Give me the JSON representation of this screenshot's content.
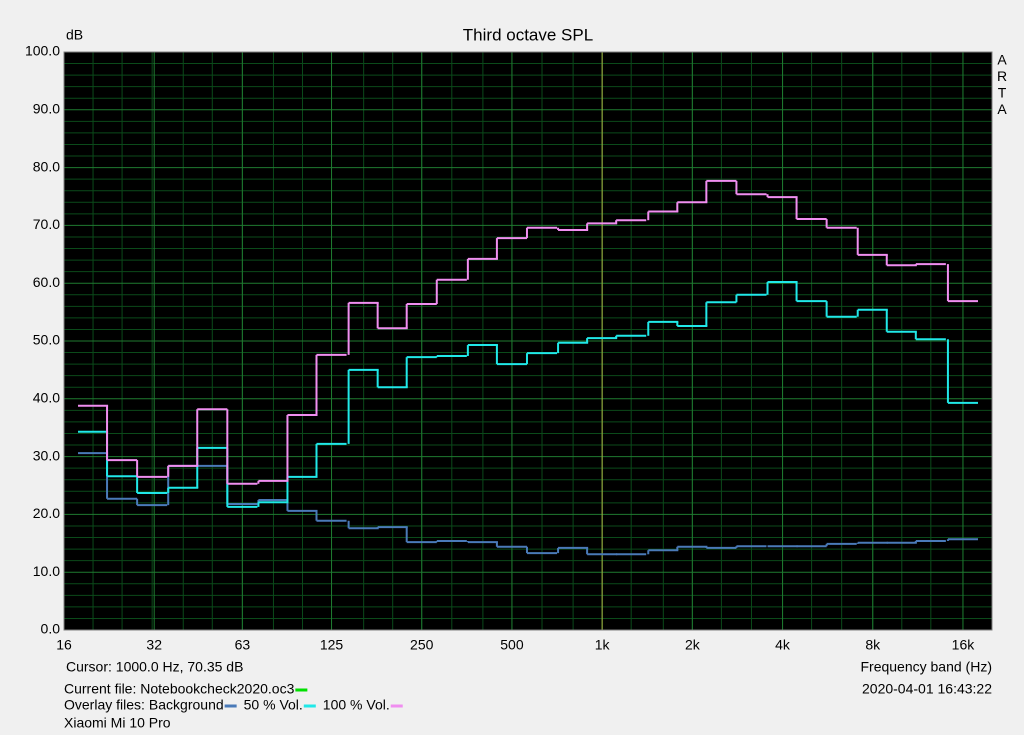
{
  "chart_data": {
    "type": "step",
    "title": "Third octave SPL",
    "y_label": "dB",
    "x_label": "Frequency band (Hz)",
    "watermark": [
      "A",
      "R",
      "T",
      "A"
    ],
    "cursor_text": "Cursor:  1000.0 Hz, 70.35 dB",
    "cursor_x": 1000,
    "current_file": "Current file: Notebookcheck2020.oc3",
    "current_file_color": "#00e000",
    "overlay_label": "Overlay files:",
    "device": "Xiaomi Mi 10 Pro",
    "timestamp": "2020-04-01  16:43:22",
    "log_x": true,
    "grid": true,
    "xlim": [
      16,
      20000
    ],
    "ylim": [
      0,
      100
    ],
    "xticks": [
      16,
      32,
      63,
      125,
      250,
      500,
      {
        "value": 1000,
        "label": "1k"
      },
      {
        "value": 2000,
        "label": "2k"
      },
      {
        "value": 4000,
        "label": "4k"
      },
      {
        "value": 8000,
        "label": "8k"
      },
      {
        "value": 16000,
        "label": "16k"
      }
    ],
    "yticks": [
      {
        "value": 0,
        "label": "0.0"
      },
      {
        "value": 10,
        "label": "10.0"
      },
      {
        "value": 20,
        "label": "20.0"
      },
      {
        "value": 30,
        "label": "30.0"
      },
      {
        "value": 40,
        "label": "40.0"
      },
      {
        "value": 50,
        "label": "50.0"
      },
      {
        "value": 60,
        "label": "60.0"
      },
      {
        "value": 70,
        "label": "70.0"
      },
      {
        "value": 80,
        "label": "80.0"
      },
      {
        "value": 90,
        "label": "90.0"
      },
      {
        "value": 100,
        "label": "100.0"
      }
    ],
    "x": [
      20,
      25,
      31.5,
      40,
      50,
      63,
      80,
      100,
      125,
      160,
      200,
      250,
      315,
      400,
      500,
      630,
      800,
      1000,
      1250,
      1600,
      2000,
      2500,
      3150,
      4000,
      5000,
      6300,
      8000,
      10000,
      12500,
      16000
    ],
    "series": [
      {
        "name": "Background",
        "color": "#4a7ab8",
        "values": [
          30.6,
          22.7,
          21.6,
          28.4,
          28.4,
          21.8,
          22.5,
          20.6,
          18.9,
          17.6,
          17.8,
          15.2,
          15.4,
          15.2,
          14.4,
          13.3,
          14.2,
          13.1,
          13.1,
          13.8,
          14.4,
          14.2,
          14.5,
          14.5,
          14.5,
          14.9,
          15.1,
          15.1,
          15.4,
          15.7
        ]
      },
      {
        "name": "50 % Vol.",
        "color": "#20e8e8",
        "values": [
          34.3,
          26.6,
          23.7,
          24.6,
          31.5,
          21.3,
          22.1,
          26.5,
          32.2,
          45.0,
          42.0,
          47.2,
          47.4,
          49.3,
          46.0,
          47.9,
          49.7,
          50.5,
          50.9,
          53.3,
          52.6,
          56.7,
          58.0,
          60.2,
          56.9,
          54.2,
          55.4,
          51.6,
          50.3,
          39.3
        ]
      },
      {
        "name": "100 % Vol.",
        "color": "#f08ef0",
        "values": [
          38.8,
          29.4,
          26.5,
          28.4,
          38.2,
          25.3,
          25.8,
          37.2,
          47.6,
          56.6,
          52.2,
          56.4,
          60.6,
          64.2,
          67.8,
          69.6,
          69.2,
          70.35,
          70.9,
          72.4,
          74.0,
          77.7,
          75.4,
          74.9,
          71.1,
          69.6,
          64.9,
          63.1,
          63.3,
          56.9
        ]
      }
    ]
  }
}
